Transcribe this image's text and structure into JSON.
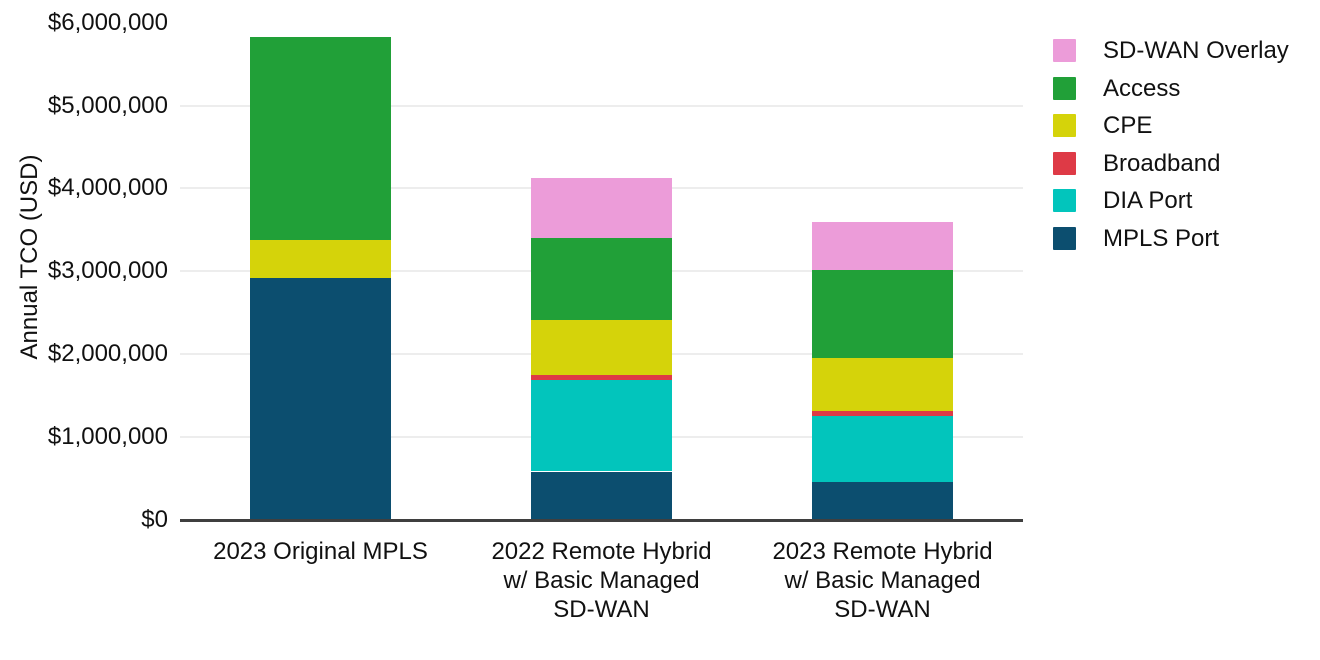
{
  "page": {
    "background": "#ffffff",
    "text_color": "#111111"
  },
  "chart_data": {
    "type": "bar",
    "stacked": true,
    "title": "",
    "xlabel": "",
    "ylabel": "Annual TCO (USD)",
    "ylim": [
      0,
      6000000
    ],
    "ytick_step": 1000000,
    "ytick_labels": [
      "$0",
      "$1,000,000",
      "$2,000,000",
      "$3,000,000",
      "$4,000,000",
      "$5,000,000",
      "$6,000,000"
    ],
    "grid": {
      "show": true,
      "color": "#ededed"
    },
    "axis_line_color": "#3f3f3f",
    "categories": [
      "2023 Original MPLS",
      "2022 Remote Hybrid w/ Basic Managed SD-WAN",
      "2023 Remote Hybrid w/ Basic Managed SD-WAN"
    ],
    "category_label_lines": [
      [
        "2023 Original MPLS"
      ],
      [
        "2022 Remote Hybrid",
        "w/ Basic Managed",
        "SD-WAN"
      ],
      [
        "2023 Remote Hybrid",
        "w/ Basic Managed",
        "SD-WAN"
      ]
    ],
    "series": [
      {
        "name": "MPLS Port",
        "color": "#0C4E6F",
        "values": [
          2915000,
          585000,
          460000
        ]
      },
      {
        "name": "DIA Port",
        "color": "#02C5BC",
        "values": [
          0,
          1105000,
          795000
        ]
      },
      {
        "name": "Broadband",
        "color": "#DE3A46",
        "values": [
          0,
          60000,
          55000
        ]
      },
      {
        "name": "CPE",
        "color": "#D5D30A",
        "values": [
          460000,
          665000,
          645000
        ]
      },
      {
        "name": "Access",
        "color": "#21A038",
        "values": [
          2455000,
          990000,
          1055000
        ]
      },
      {
        "name": "SD-WAN Overlay",
        "color": "#EC9CD9",
        "values": [
          0,
          720000,
          585000
        ]
      }
    ],
    "legend": {
      "position": "top-right",
      "order_top_to_bottom": [
        "SD-WAN Overlay",
        "Access",
        "CPE",
        "Broadband",
        "DIA Port",
        "MPLS Port"
      ]
    }
  }
}
